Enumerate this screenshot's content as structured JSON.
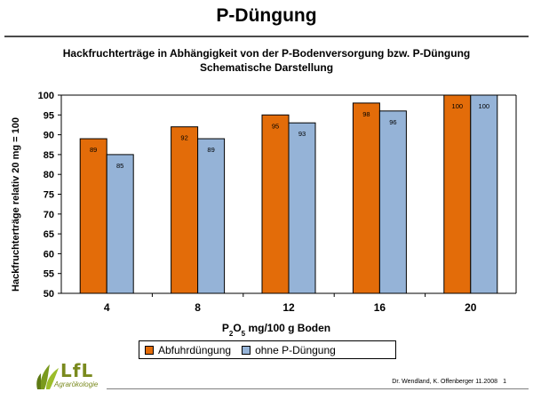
{
  "slide": {
    "title": "P-Düngung",
    "footer_authors": "Dr. Wendland, K. Offenberger 11.2008",
    "page_number": "1",
    "logo_text": "LfL",
    "logo_sub": "Agrarökologie"
  },
  "chart_data": {
    "type": "bar",
    "title_line1": "Hackfruchterträge in Abhängigkeit von der P-Bodenversorgung bzw. P-Düngung",
    "title_line2": "Schematische Darstellung",
    "xlabel": "P2O5 mg/100 g Boden",
    "ylabel": "Hackfruchterträge relativ 20 mg = 100",
    "categories": [
      "4",
      "8",
      "12",
      "16",
      "20"
    ],
    "ylim": [
      50,
      100
    ],
    "yticks": [
      "50",
      "55",
      "60",
      "65",
      "70",
      "75",
      "80",
      "85",
      "90",
      "95",
      "100"
    ],
    "series": [
      {
        "name": "Abfuhrdüngung",
        "color": "#E36C09",
        "values": [
          89,
          92,
          95,
          98,
          100
        ],
        "labels": [
          "89",
          "92",
          "95",
          "98",
          "100"
        ]
      },
      {
        "name": "ohne P-Düngung",
        "color": "#95B3D7",
        "values": [
          85,
          89,
          93,
          96,
          100
        ],
        "labels": [
          "85",
          "89",
          "93",
          "96",
          "100"
        ]
      }
    ],
    "grid": false,
    "legend_position": "bottom"
  }
}
